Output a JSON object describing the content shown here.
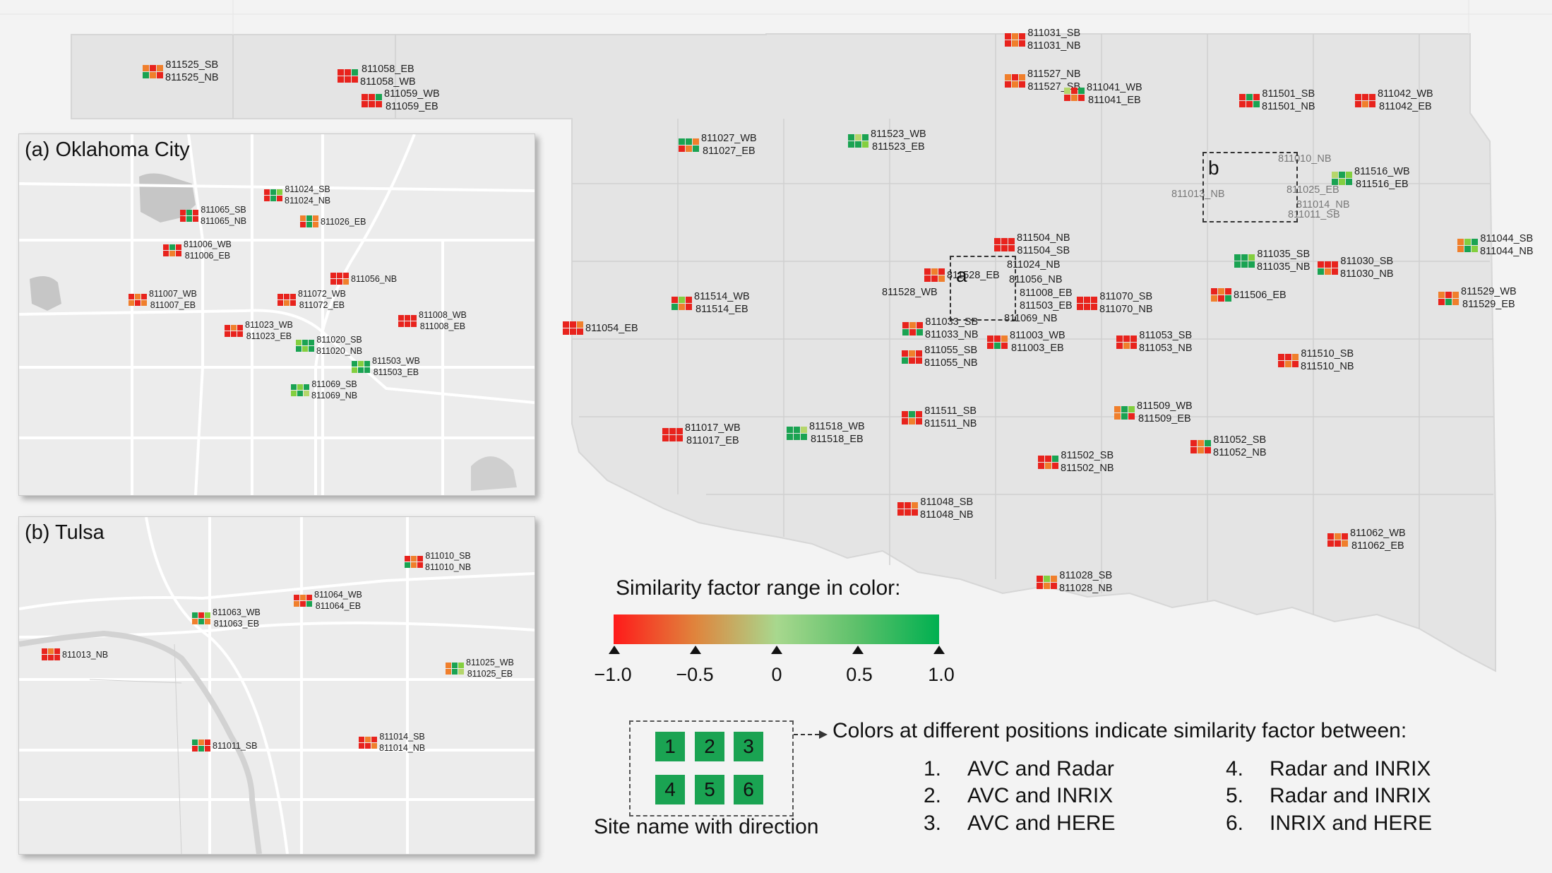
{
  "colors": {
    "red": "#e8231d",
    "orange": "#f07f2c",
    "yellowgreen": "#b5d66b",
    "green": "#1aa352",
    "lime": "#83cf3f",
    "ltgreen": "#a2da73",
    "pink": "#f2a1a1"
  },
  "insets": {
    "oklahoma_city": {
      "title": "(a) Oklahoma City"
    },
    "tulsa": {
      "title": "(b) Tulsa"
    }
  },
  "main_sites": [
    {
      "top": "811525_SB",
      "bottom": "811525_NB",
      "cells": [
        "O",
        "R",
        "O",
        "G",
        "O",
        "R"
      ]
    },
    {
      "top": "811058_EB",
      "bottom": "811058_WB",
      "cells": [
        "R",
        "R",
        "G",
        "R",
        "R",
        "R"
      ]
    },
    {
      "top": "811059_WB",
      "bottom": "811059_EB",
      "cells": [
        "R",
        "R",
        "G",
        "R",
        "R",
        "R"
      ]
    },
    {
      "top": "811031_SB",
      "bottom": "811031_NB",
      "cells": [
        "R",
        "O",
        "R",
        "R",
        "O",
        "R"
      ]
    },
    {
      "top": "811527_NB",
      "bottom": "811527_SB",
      "cells": [
        "O",
        "R",
        "O",
        "R",
        "O",
        "R"
      ]
    },
    {
      "top": "811041_WB",
      "bottom": "811041_EB",
      "cells": [
        "Y",
        "R",
        "G",
        "R",
        "O",
        "R"
      ]
    },
    {
      "top": "811501_SB",
      "bottom": "811501_NB",
      "cells": [
        "R",
        "G",
        "R",
        "R",
        "R",
        "G"
      ]
    },
    {
      "top": "811042_WB",
      "bottom": "811042_EB",
      "cells": [
        "R",
        "R",
        "R",
        "R",
        "O",
        "R"
      ]
    },
    {
      "top": "811027_WB",
      "bottom": "811027_EB",
      "cells": [
        "G",
        "G",
        "O",
        "R",
        "O",
        "G"
      ]
    },
    {
      "top": "811523_WB",
      "bottom": "811523_EB",
      "cells": [
        "G",
        "Y",
        "G",
        "G",
        "G",
        "L"
      ]
    },
    {
      "top": "811516_WB",
      "bottom": "811516_EB",
      "cells": [
        "Y",
        "G",
        "L",
        "G",
        "L",
        "G"
      ]
    },
    {
      "top": "811504_NB",
      "bottom": "811504_SB",
      "cells": [
        "R",
        "R",
        "R",
        "R",
        "R",
        "R"
      ]
    },
    {
      "top": "811024_NB",
      "bottom": "",
      "cells": []
    },
    {
      "top": "811528_EB",
      "bottom": "",
      "cells": [
        "R",
        "O",
        "R",
        "R",
        "R",
        "O"
      ]
    },
    {
      "top": "811528_WB",
      "bottom": "",
      "cells": []
    },
    {
      "top": "811056_NB",
      "bottom": "",
      "cells": []
    },
    {
      "top": "811008_EB",
      "bottom": "811503_EB",
      "cells": []
    },
    {
      "top": "811069_NB",
      "bottom": "",
      "cells": []
    },
    {
      "top": "811514_WB",
      "bottom": "811514_EB",
      "cells": [
        "R",
        "L",
        "R",
        "G",
        "O",
        "R"
      ]
    },
    {
      "top": "811054_EB",
      "bottom": "",
      "cells": [
        "R",
        "R",
        "O",
        "R",
        "R",
        "R"
      ]
    },
    {
      "top": "811033_SB",
      "bottom": "811033_NB",
      "cells": [
        "R",
        "O",
        "R",
        "G",
        "R",
        "G"
      ]
    },
    {
      "top": "811055_SB",
      "bottom": "811055_NB",
      "cells": [
        "R",
        "O",
        "R",
        "G",
        "R",
        "R"
      ]
    },
    {
      "top": "811003_WB",
      "bottom": "811003_EB",
      "cells": [
        "R",
        "R",
        "O",
        "R",
        "G",
        "R"
      ]
    },
    {
      "top": "811070_SB",
      "bottom": "811070_NB",
      "cells": [
        "R",
        "R",
        "R",
        "R",
        "R",
        "R"
      ]
    },
    {
      "top": "811053_SB",
      "bottom": "811053_NB",
      "cells": [
        "R",
        "R",
        "R",
        "R",
        "O",
        "R"
      ]
    },
    {
      "top": "811035_SB",
      "bottom": "811035_NB",
      "cells": [
        "G",
        "G",
        "L",
        "G",
        "G",
        "G"
      ]
    },
    {
      "top": "811030_SB",
      "bottom": "811030_NB",
      "cells": [
        "R",
        "R",
        "R",
        "G",
        "O",
        "R"
      ]
    },
    {
      "top": "811506_EB",
      "bottom": "",
      "cells": [
        "R",
        "O",
        "R",
        "O",
        "R",
        "G"
      ]
    },
    {
      "top": "811044_SB",
      "bottom": "811044_NB",
      "cells": [
        "O",
        "L",
        "G",
        "O",
        "G",
        "L"
      ]
    },
    {
      "top": "811529_WB",
      "bottom": "811529_EB",
      "cells": [
        "O",
        "R",
        "O",
        "R",
        "G",
        "O"
      ]
    },
    {
      "top": "811510_SB",
      "bottom": "811510_NB",
      "cells": [
        "R",
        "R",
        "O",
        "R",
        "O",
        "R"
      ]
    },
    {
      "top": "811017_WB",
      "bottom": "811017_EB",
      "cells": [
        "R",
        "R",
        "R",
        "R",
        "R",
        "R"
      ]
    },
    {
      "top": "811518_WB",
      "bottom": "811518_EB",
      "cells": [
        "G",
        "G",
        "Y",
        "G",
        "G",
        "G"
      ]
    },
    {
      "top": "811511_SB",
      "bottom": "811511_NB",
      "cells": [
        "R",
        "G",
        "R",
        "R",
        "O",
        "R"
      ]
    },
    {
      "top": "811509_WB",
      "bottom": "811509_EB",
      "cells": [
        "O",
        "G",
        "L",
        "O",
        "G",
        "R"
      ]
    },
    {
      "top": "811052_SB",
      "bottom": "811052_NB",
      "cells": [
        "R",
        "O",
        "G",
        "R",
        "O",
        "R"
      ]
    },
    {
      "top": "811502_SB",
      "bottom": "811502_NB",
      "cells": [
        "R",
        "R",
        "G",
        "R",
        "O",
        "R"
      ]
    },
    {
      "top": "811048_SB",
      "bottom": "811048_NB",
      "cells": [
        "R",
        "R",
        "O",
        "R",
        "R",
        "R"
      ]
    },
    {
      "top": "811062_WB",
      "bottom": "811062_EB",
      "cells": [
        "R",
        "O",
        "R",
        "R",
        "R",
        "O"
      ]
    },
    {
      "top": "811028_SB",
      "bottom": "811028_NB",
      "cells": [
        "R",
        "L",
        "O",
        "R",
        "O",
        "R"
      ]
    },
    {
      "top": "811010_NB",
      "bottom": "",
      "cells": []
    },
    {
      "top": "811025_EB",
      "bottom": "",
      "cells": []
    },
    {
      "top": "811014_NB",
      "bottom": "",
      "cells": []
    },
    {
      "top": "811013_NB",
      "bottom": "",
      "cells": []
    },
    {
      "top": "811011_SB",
      "bottom": "",
      "cells": []
    }
  ],
  "okc_sites": [
    {
      "top": "811024_SB",
      "bottom": "811024_NB",
      "cells": [
        "R",
        "G",
        "L",
        "R",
        "G",
        "R"
      ]
    },
    {
      "top": "811065_SB",
      "bottom": "811065_NB",
      "cells": [
        "R",
        "G",
        "R",
        "R",
        "G",
        "R"
      ]
    },
    {
      "top": "811026_EB",
      "bottom": "",
      "cells": [
        "O",
        "G",
        "O",
        "R",
        "G",
        "O"
      ]
    },
    {
      "top": "811006_WB",
      "bottom": "811006_EB",
      "cells": [
        "R",
        "G",
        "R",
        "R",
        "O",
        "R"
      ]
    },
    {
      "top": "811056_NB",
      "bottom": "",
      "cells": [
        "R",
        "R",
        "R",
        "R",
        "R",
        "O"
      ]
    },
    {
      "top": "811007_WB",
      "bottom": "811007_EB",
      "cells": [
        "R",
        "O",
        "R",
        "O",
        "R",
        "O"
      ]
    },
    {
      "top": "811072_WB",
      "bottom": "811072_EB",
      "cells": [
        "R",
        "R",
        "R",
        "R",
        "O",
        "R"
      ]
    },
    {
      "top": "811008_WB",
      "bottom": "811008_EB",
      "cells": [
        "R",
        "R",
        "R",
        "R",
        "R",
        "R"
      ]
    },
    {
      "top": "811023_WB",
      "bottom": "811023_EB",
      "cells": [
        "R",
        "O",
        "R",
        "R",
        "R",
        "R"
      ]
    },
    {
      "top": "811020_SB",
      "bottom": "811020_NB",
      "cells": [
        "L",
        "G",
        "G",
        "G",
        "L",
        "G"
      ]
    },
    {
      "top": "811503_WB",
      "bottom": "811503_EB",
      "cells": [
        "G",
        "L",
        "G",
        "L",
        "G",
        "G"
      ]
    },
    {
      "top": "811069_SB",
      "bottom": "811069_NB",
      "cells": [
        "G",
        "L",
        "G",
        "L",
        "G",
        "Y"
      ]
    }
  ],
  "tulsa_sites": [
    {
      "top": "811010_SB",
      "bottom": "811010_NB",
      "cells": [
        "R",
        "O",
        "R",
        "G",
        "O",
        "R"
      ]
    },
    {
      "top": "811064_WB",
      "bottom": "811064_EB",
      "cells": [
        "R",
        "O",
        "R",
        "O",
        "R",
        "G"
      ]
    },
    {
      "top": "811063_WB",
      "bottom": "811063_EB",
      "cells": [
        "G",
        "R",
        "L",
        "O",
        "G",
        "O"
      ]
    },
    {
      "top": "811013_NB",
      "bottom": "",
      "cells": [
        "R",
        "O",
        "R",
        "R",
        "R",
        "R"
      ]
    },
    {
      "top": "811025_WB",
      "bottom": "811025_EB",
      "cells": [
        "O",
        "G",
        "L",
        "O",
        "G",
        "Y"
      ]
    },
    {
      "top": "811014_SB",
      "bottom": "811014_NB",
      "cells": [
        "R",
        "O",
        "R",
        "R",
        "R",
        "O"
      ]
    },
    {
      "top": "811011_SB",
      "bottom": "",
      "cells": [
        "G",
        "O",
        "R",
        "R",
        "G",
        "R"
      ]
    }
  ],
  "box_letters": {
    "a": "a",
    "b": "b"
  },
  "legend": {
    "title": "Similarity factor range in color:",
    "ticks": [
      "−1.0",
      "−0.5",
      "0",
      "0.5",
      "1.0"
    ],
    "gradient": [
      "#ff1a1a",
      "#e0843c",
      "#a8d88e",
      "#5cc06a",
      "#00b050"
    ],
    "key_numbers": [
      "1",
      "2",
      "3",
      "4",
      "5",
      "6"
    ],
    "key_label": "Site name with direction",
    "explanation": "Colors at different positions indicate similarity factor between:",
    "items": [
      {
        "n": "1.",
        "text": "AVC and Radar"
      },
      {
        "n": "2.",
        "text": "AVC and INRIX"
      },
      {
        "n": "3.",
        "text": "AVC and HERE"
      },
      {
        "n": "4.",
        "text": "Radar and INRIX"
      },
      {
        "n": "5.",
        "text": "Radar and INRIX"
      },
      {
        "n": "6.",
        "text": "INRIX and HERE"
      }
    ]
  }
}
